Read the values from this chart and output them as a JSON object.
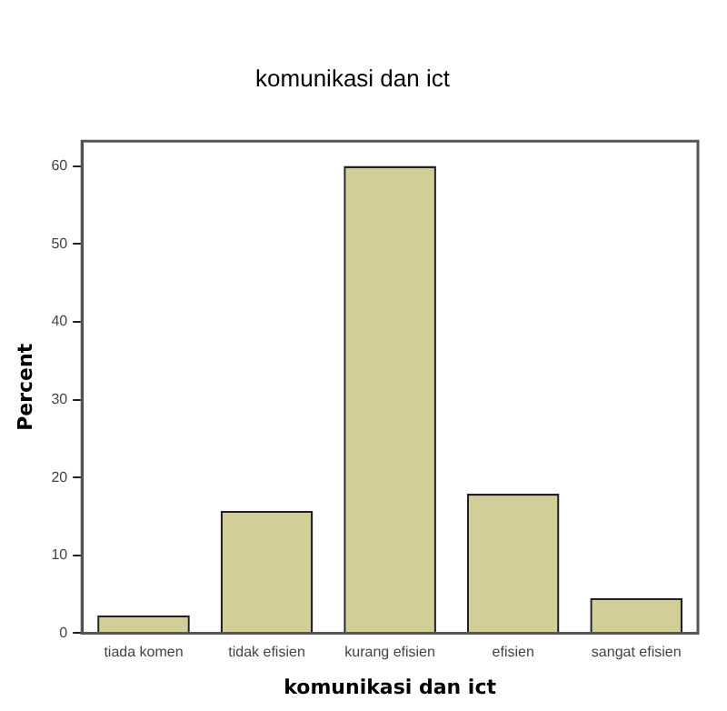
{
  "chart_data": {
    "type": "bar",
    "title": "komunikasi dan ict",
    "xlabel": "komunikasi dan ict",
    "ylabel": "Percent",
    "categories": [
      "tiada komen",
      "tidak efisien",
      "kurang efisien",
      "efisien",
      "sangat efisien"
    ],
    "values": [
      2.3,
      15.7,
      60,
      17.9,
      4.5
    ],
    "color": "#d3ce98",
    "ylim": [
      0,
      63.2
    ],
    "yticks": [
      0,
      10,
      20,
      30,
      40,
      50,
      60
    ],
    "grid": false,
    "legend": false
  }
}
